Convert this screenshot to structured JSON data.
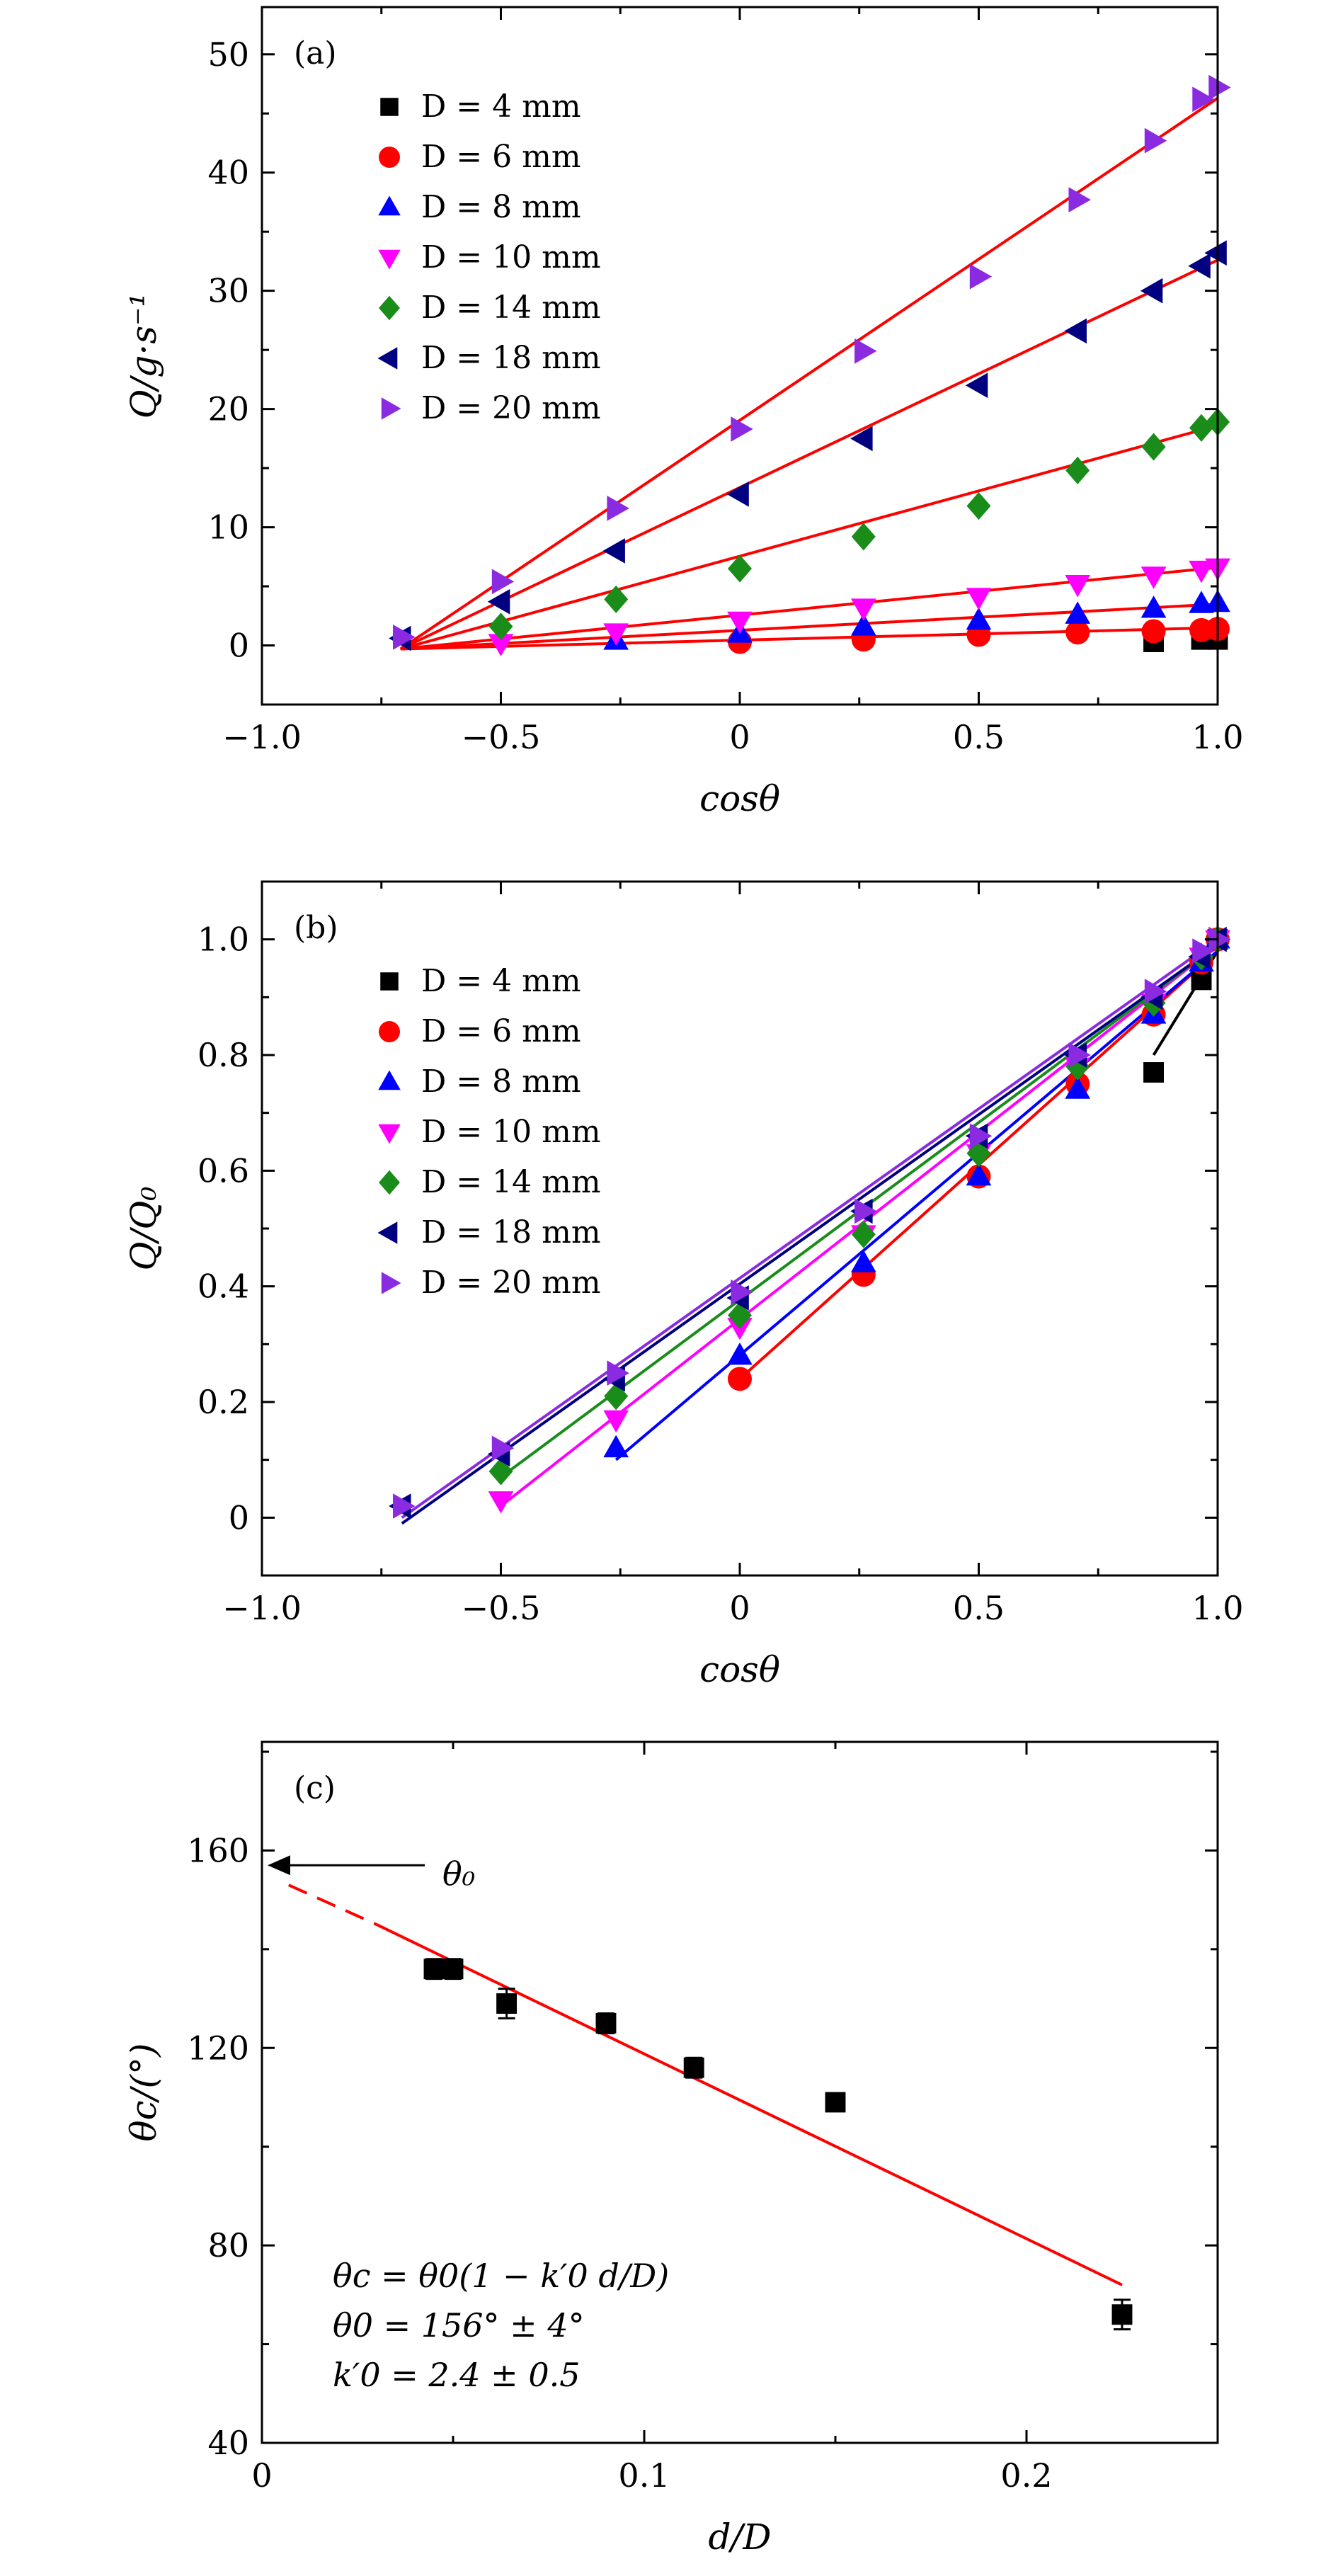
{
  "chart_data": [
    {
      "type": "scatter",
      "panel_label": "(a)",
      "xlabel": "cosθ",
      "ylabel": "Q/g·s⁻¹",
      "xlim": [
        -1.0,
        1.0
      ],
      "ylim": [
        -5,
        54
      ],
      "xticks": [
        -1.0,
        -0.5,
        0,
        0.5,
        1.0
      ],
      "xtick_labels": [
        "−1.0",
        "−0.5",
        "0",
        "0.5",
        "1.0"
      ],
      "yticks": [
        0,
        10,
        20,
        30,
        40,
        50
      ],
      "ytick_labels": [
        "0",
        "10",
        "20",
        "30",
        "40",
        "50"
      ],
      "grid": false,
      "legend_position": "top-left",
      "series": [
        {
          "name": "D = 4 mm",
          "color": "#000000",
          "marker": "square",
          "x": [
            0.866,
            0.966,
            1.0
          ],
          "y": [
            0.3,
            0.5,
            0.5
          ]
        },
        {
          "name": "D = 6 mm",
          "color": "#ff0000",
          "marker": "circle",
          "x": [
            0.0,
            0.259,
            0.5,
            0.707,
            0.866,
            0.966,
            1.0
          ],
          "y": [
            0.3,
            0.5,
            0.9,
            1.1,
            1.2,
            1.3,
            1.4
          ]
        },
        {
          "name": "D = 8 mm",
          "color": "#0000ff",
          "marker": "triangle-up",
          "x": [
            -0.259,
            0.0,
            0.259,
            0.5,
            0.707,
            0.866,
            0.966,
            1.0
          ],
          "y": [
            0.4,
            1.0,
            1.6,
            2.1,
            2.6,
            3.1,
            3.5,
            3.6
          ]
        },
        {
          "name": "D = 10 mm",
          "color": "#ff00ff",
          "marker": "triangle-down",
          "x": [
            -0.5,
            -0.259,
            0.0,
            0.259,
            0.5,
            0.707,
            0.866,
            0.966,
            1.0
          ],
          "y": [
            0.2,
            1.1,
            2.1,
            3.2,
            4.1,
            5.2,
            5.9,
            6.4,
            6.6
          ]
        },
        {
          "name": "D = 14 mm",
          "color": "#1a8c1a",
          "marker": "diamond",
          "x": [
            -0.5,
            -0.259,
            0.0,
            0.259,
            0.5,
            0.707,
            0.866,
            0.966,
            1.0
          ],
          "y": [
            1.6,
            3.9,
            6.5,
            9.2,
            11.8,
            14.8,
            16.8,
            18.4,
            18.9
          ]
        },
        {
          "name": "D = 18 mm",
          "color": "#000080",
          "marker": "triangle-left",
          "x": [
            -0.707,
            -0.5,
            -0.259,
            0.0,
            0.259,
            0.5,
            0.707,
            0.866,
            0.966,
            1.0
          ],
          "y": [
            0.6,
            3.7,
            8.0,
            12.8,
            17.5,
            22.0,
            26.6,
            30.0,
            32.1,
            33.2
          ]
        },
        {
          "name": "D = 20 mm",
          "color": "#8a2be2",
          "marker": "triangle-right",
          "x": [
            -0.707,
            -0.5,
            -0.259,
            0.0,
            0.259,
            0.5,
            0.707,
            0.866,
            0.966,
            1.0
          ],
          "y": [
            0.7,
            5.4,
            11.6,
            18.3,
            24.9,
            31.2,
            37.7,
            42.7,
            46.2,
            47.2
          ]
        }
      ],
      "fit_lines": [
        {
          "color": "#ff0000",
          "x": [
            -0.71,
            1.0
          ],
          "y": [
            -0.3,
            1.5
          ]
        },
        {
          "color": "#ff0000",
          "x": [
            -0.71,
            1.0
          ],
          "y": [
            -0.3,
            3.5
          ]
        },
        {
          "color": "#ff0000",
          "x": [
            -0.71,
            1.0
          ],
          "y": [
            -0.3,
            6.6
          ]
        },
        {
          "color": "#ff0000",
          "x": [
            -0.71,
            1.0
          ],
          "y": [
            -0.3,
            18.6
          ]
        },
        {
          "color": "#ff0000",
          "x": [
            -0.71,
            1.0
          ],
          "y": [
            -0.3,
            32.6
          ]
        },
        {
          "color": "#ff0000",
          "x": [
            -0.71,
            1.0
          ],
          "y": [
            -0.3,
            46.3
          ]
        }
      ]
    },
    {
      "type": "scatter",
      "panel_label": "(b)",
      "xlabel": "cosθ",
      "ylabel": "Q/Q₀",
      "xlim": [
        -1.0,
        1.0
      ],
      "ylim": [
        -0.1,
        1.1
      ],
      "xticks": [
        -1.0,
        -0.5,
        0,
        0.5,
        1.0
      ],
      "xtick_labels": [
        "−1.0",
        "−0.5",
        "0",
        "0.5",
        "1.0"
      ],
      "yticks": [
        0,
        0.2,
        0.4,
        0.6,
        0.8,
        1.0
      ],
      "ytick_labels": [
        "0",
        "0.2",
        "0.4",
        "0.6",
        "0.8",
        "1.0"
      ],
      "grid": false,
      "legend_position": "top-left",
      "series": [
        {
          "name": "D = 4 mm",
          "color": "#000000",
          "marker": "square",
          "x": [
            0.866,
            0.966,
            1.0
          ],
          "y": [
            0.77,
            0.93,
            1.0
          ]
        },
        {
          "name": "D = 6 mm",
          "color": "#ff0000",
          "marker": "circle",
          "x": [
            0.0,
            0.259,
            0.5,
            0.707,
            0.866,
            0.966,
            1.0
          ],
          "y": [
            0.24,
            0.42,
            0.59,
            0.75,
            0.87,
            0.96,
            1.0
          ]
        },
        {
          "name": "D = 8 mm",
          "color": "#0000ff",
          "marker": "triangle-up",
          "x": [
            -0.259,
            0.0,
            0.259,
            0.5,
            0.707,
            0.866,
            0.966,
            1.0
          ],
          "y": [
            0.12,
            0.28,
            0.44,
            0.59,
            0.74,
            0.87,
            0.96,
            1.0
          ]
        },
        {
          "name": "D = 10 mm",
          "color": "#ff00ff",
          "marker": "triangle-down",
          "x": [
            -0.5,
            -0.259,
            0.0,
            0.259,
            0.5,
            0.707,
            0.866,
            0.966,
            1.0
          ],
          "y": [
            0.03,
            0.17,
            0.33,
            0.49,
            0.63,
            0.78,
            0.89,
            0.97,
            1.0
          ]
        },
        {
          "name": "D = 14 mm",
          "color": "#1a8c1a",
          "marker": "diamond",
          "x": [
            -0.5,
            -0.259,
            0.0,
            0.259,
            0.5,
            0.707,
            0.866,
            0.966,
            1.0
          ],
          "y": [
            0.08,
            0.21,
            0.35,
            0.49,
            0.63,
            0.78,
            0.89,
            0.97,
            1.0
          ]
        },
        {
          "name": "D = 18 mm",
          "color": "#000080",
          "marker": "triangle-left",
          "x": [
            -0.707,
            -0.5,
            -0.259,
            0.0,
            0.259,
            0.5,
            0.707,
            0.866,
            0.966,
            1.0
          ],
          "y": [
            0.02,
            0.11,
            0.24,
            0.38,
            0.53,
            0.66,
            0.8,
            0.9,
            0.97,
            1.0
          ]
        },
        {
          "name": "D = 20 mm",
          "color": "#8a2be2",
          "marker": "triangle-right",
          "x": [
            -0.707,
            -0.5,
            -0.259,
            0.0,
            0.259,
            0.5,
            0.707,
            0.866,
            0.966,
            1.0
          ],
          "y": [
            0.02,
            0.12,
            0.25,
            0.39,
            0.53,
            0.66,
            0.8,
            0.91,
            0.98,
            1.0
          ]
        }
      ],
      "fit_lines": [
        {
          "color": "#000000",
          "x": [
            0.866,
            1.0
          ],
          "y": [
            0.8,
            0.98
          ]
        },
        {
          "color": "#ff0000",
          "x": [
            0.0,
            1.0
          ],
          "y": [
            0.24,
            0.98
          ]
        },
        {
          "color": "#0000ff",
          "x": [
            -0.259,
            1.0
          ],
          "y": [
            0.1,
            0.98
          ]
        },
        {
          "color": "#ff00ff",
          "x": [
            -0.5,
            1.0
          ],
          "y": [
            0.02,
            0.99
          ]
        },
        {
          "color": "#1a8c1a",
          "x": [
            -0.5,
            1.0
          ],
          "y": [
            0.07,
            0.99
          ]
        },
        {
          "color": "#000080",
          "x": [
            -0.707,
            1.0
          ],
          "y": [
            -0.01,
            0.99
          ]
        },
        {
          "color": "#8a2be2",
          "x": [
            -0.707,
            1.0
          ],
          "y": [
            0.0,
            1.0
          ]
        }
      ]
    },
    {
      "type": "scatter",
      "panel_label": "(c)",
      "xlabel": "d/D",
      "ylabel": "θc/(°)",
      "xlim": [
        0,
        0.25
      ],
      "ylim": [
        40,
        182
      ],
      "xticks": [
        0,
        0.1,
        0.2
      ],
      "xtick_labels": [
        "0",
        "0.1",
        "0.2"
      ],
      "yticks": [
        40,
        80,
        120,
        160
      ],
      "ytick_labels": [
        "40",
        "80",
        "120",
        "160"
      ],
      "grid": false,
      "series": [
        {
          "name": "",
          "color": "#000000",
          "marker": "square",
          "x": [
            0.045,
            0.05,
            0.064,
            0.09,
            0.113,
            0.15,
            0.225
          ],
          "y": [
            136,
            136,
            129,
            125,
            116,
            109,
            66
          ],
          "yerr": [
            2,
            2,
            3,
            2,
            2,
            1,
            3
          ]
        }
      ],
      "fit_line": {
        "color": "#ff0000",
        "x": [
          0.03,
          0.225
        ],
        "y": [
          145,
          72
        ]
      },
      "fit_line_dashed": {
        "color": "#ff0000",
        "x": [
          0.007,
          0.03
        ],
        "y": [
          153,
          145
        ]
      },
      "theta0_marker": {
        "y": 157,
        "label": "θ₀"
      },
      "annotations": [
        "θc = θ0(1 − k′0 d/D)",
        "θ0 = 156° ± 4°",
        "k′0 = 2.4 ± 0.5"
      ]
    }
  ]
}
